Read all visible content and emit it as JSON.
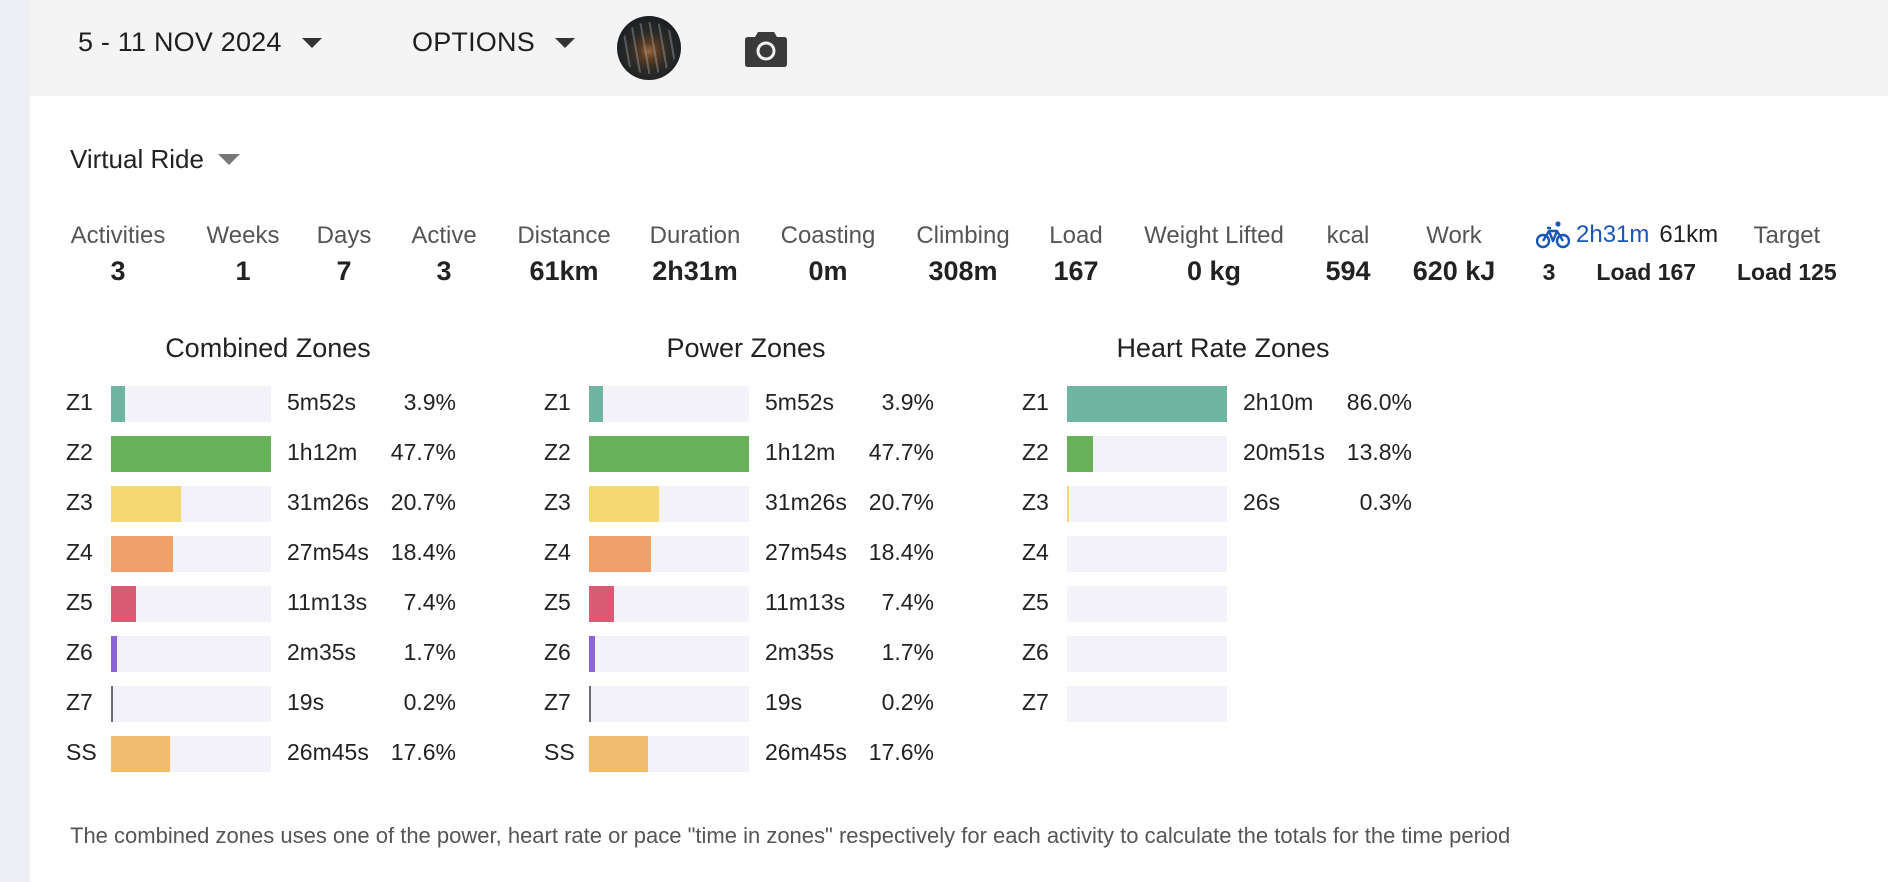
{
  "topbar": {
    "date_range": "5 - 11 NOV 2024",
    "options_label": "OPTIONS"
  },
  "sport": "Virtual Ride",
  "stats": [
    {
      "label": "Activities",
      "value": "3"
    },
    {
      "label": "Weeks",
      "value": "1"
    },
    {
      "label": "Days",
      "value": "7"
    },
    {
      "label": "Active",
      "value": "3"
    },
    {
      "label": "Distance",
      "value": "61km"
    },
    {
      "label": "Duration",
      "value": "2h31m"
    },
    {
      "label": "Coasting",
      "value": "0m"
    },
    {
      "label": "Climbing",
      "value": "308m"
    },
    {
      "label": "Load",
      "value": "167"
    },
    {
      "label": "Weight Lifted",
      "value": "0 kg"
    },
    {
      "label": "kcal",
      "value": "594"
    },
    {
      "label": "Work",
      "value": "620 kJ"
    }
  ],
  "bike_summary": {
    "icon": "bicycle-icon",
    "duration": "2h31m",
    "distance": "61km",
    "count": "3",
    "load": "Load 167"
  },
  "target": {
    "label": "Target",
    "value": "Load 125"
  },
  "colors": {
    "Z1": "#6fb5a2",
    "Z2": "#6ab25a",
    "Z3": "#f4d872",
    "Z4": "#f0a06a",
    "Z5": "#d95a72",
    "Z6": "#8a64d8",
    "Z7": "#6b6b7a",
    "SS": "#f3bb6d",
    "link": "#1a56b8"
  },
  "zones": [
    {
      "title": "Combined Zones",
      "rows": [
        {
          "zone": "Z1",
          "time": "5m52s",
          "pct": "3.9%",
          "fraction": 0.085
        },
        {
          "zone": "Z2",
          "time": "1h12m",
          "pct": "47.7%",
          "fraction": 1.0
        },
        {
          "zone": "Z3",
          "time": "31m26s",
          "pct": "20.7%",
          "fraction": 0.435
        },
        {
          "zone": "Z4",
          "time": "27m54s",
          "pct": "18.4%",
          "fraction": 0.386
        },
        {
          "zone": "Z5",
          "time": "11m13s",
          "pct": "7.4%",
          "fraction": 0.155
        },
        {
          "zone": "Z6",
          "time": "2m35s",
          "pct": "1.7%",
          "fraction": 0.036
        },
        {
          "zone": "Z7",
          "time": "19s",
          "pct": "0.2%",
          "fraction": 0.005
        },
        {
          "zone": "SS",
          "time": "26m45s",
          "pct": "17.6%",
          "fraction": 0.369
        }
      ]
    },
    {
      "title": "Power Zones",
      "rows": [
        {
          "zone": "Z1",
          "time": "5m52s",
          "pct": "3.9%",
          "fraction": 0.085
        },
        {
          "zone": "Z2",
          "time": "1h12m",
          "pct": "47.7%",
          "fraction": 1.0
        },
        {
          "zone": "Z3",
          "time": "31m26s",
          "pct": "20.7%",
          "fraction": 0.435
        },
        {
          "zone": "Z4",
          "time": "27m54s",
          "pct": "18.4%",
          "fraction": 0.386
        },
        {
          "zone": "Z5",
          "time": "11m13s",
          "pct": "7.4%",
          "fraction": 0.155
        },
        {
          "zone": "Z6",
          "time": "2m35s",
          "pct": "1.7%",
          "fraction": 0.036
        },
        {
          "zone": "Z7",
          "time": "19s",
          "pct": "0.2%",
          "fraction": 0.005
        },
        {
          "zone": "SS",
          "time": "26m45s",
          "pct": "17.6%",
          "fraction": 0.369
        }
      ]
    },
    {
      "title": "Heart Rate Zones",
      "rows": [
        {
          "zone": "Z1",
          "time": "2h10m",
          "pct": "86.0%",
          "fraction": 1.0
        },
        {
          "zone": "Z2",
          "time": "20m51s",
          "pct": "13.8%",
          "fraction": 0.16
        },
        {
          "zone": "Z3",
          "time": "26s",
          "pct": "0.3%",
          "fraction": 0.008
        },
        {
          "zone": "Z4",
          "time": "",
          "pct": "",
          "fraction": 0
        },
        {
          "zone": "Z5",
          "time": "",
          "pct": "",
          "fraction": 0
        },
        {
          "zone": "Z6",
          "time": "",
          "pct": "",
          "fraction": 0
        },
        {
          "zone": "Z7",
          "time": "",
          "pct": "",
          "fraction": 0
        }
      ]
    }
  ],
  "footnote": "The combined zones uses one of the power, heart rate or pace \"time in zones\" respectively for each activity to calculate the totals for the time period"
}
